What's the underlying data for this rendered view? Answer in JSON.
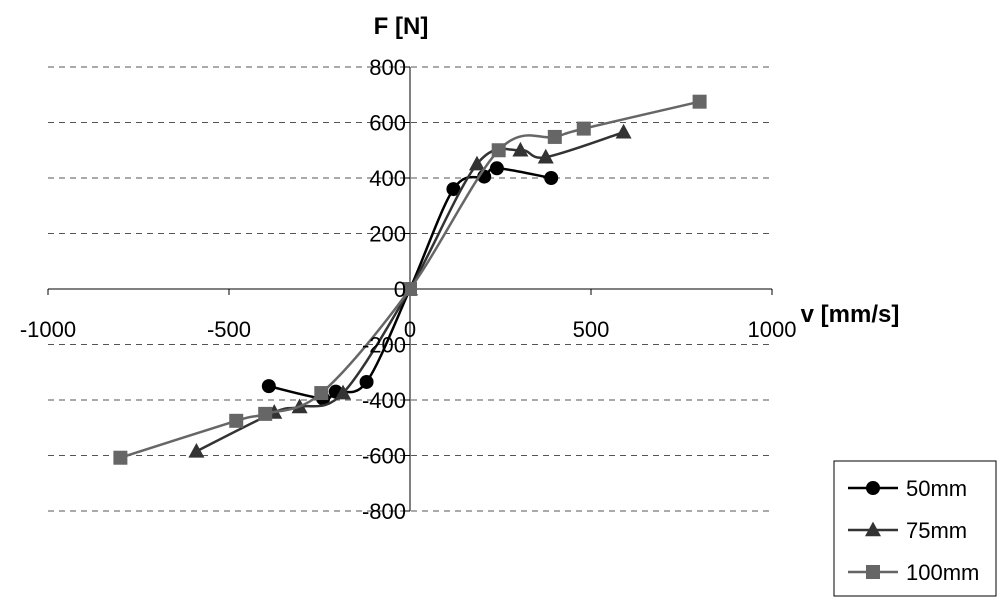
{
  "chart_data": {
    "type": "scatter",
    "title": "",
    "xlabel": "v [mm/s]",
    "ylabel": "F [N]",
    "xlim": [
      -1000,
      1000
    ],
    "ylim": [
      -800,
      800
    ],
    "x_ticks": [
      -1000,
      -500,
      0,
      500,
      1000
    ],
    "y_ticks": [
      800,
      600,
      400,
      200,
      0,
      -200,
      -400,
      -600,
      -800
    ],
    "grid": "horizontal dashed",
    "legend_position": "bottom-right",
    "series": [
      {
        "name": "50mm",
        "marker": "circle",
        "color": "#000000",
        "x": [
          -390,
          -240,
          -205,
          -120,
          0,
          120,
          205,
          240,
          390
        ],
        "y": [
          -350,
          -395,
          -370,
          -335,
          0,
          360,
          405,
          435,
          400
        ]
      },
      {
        "name": "75mm",
        "marker": "triangle",
        "color": "#333333",
        "x": [
          -590,
          -375,
          -305,
          -185,
          0,
          185,
          305,
          375,
          590
        ],
        "y": [
          -585,
          -445,
          -425,
          -375,
          0,
          450,
          500,
          475,
          565
        ]
      },
      {
        "name": "100mm",
        "marker": "square",
        "color": "#666666",
        "x": [
          -800,
          -480,
          -400,
          -245,
          0,
          245,
          400,
          480,
          800
        ],
        "y": [
          -608,
          -475,
          -450,
          -375,
          0,
          500,
          548,
          578,
          675
        ]
      }
    ]
  }
}
